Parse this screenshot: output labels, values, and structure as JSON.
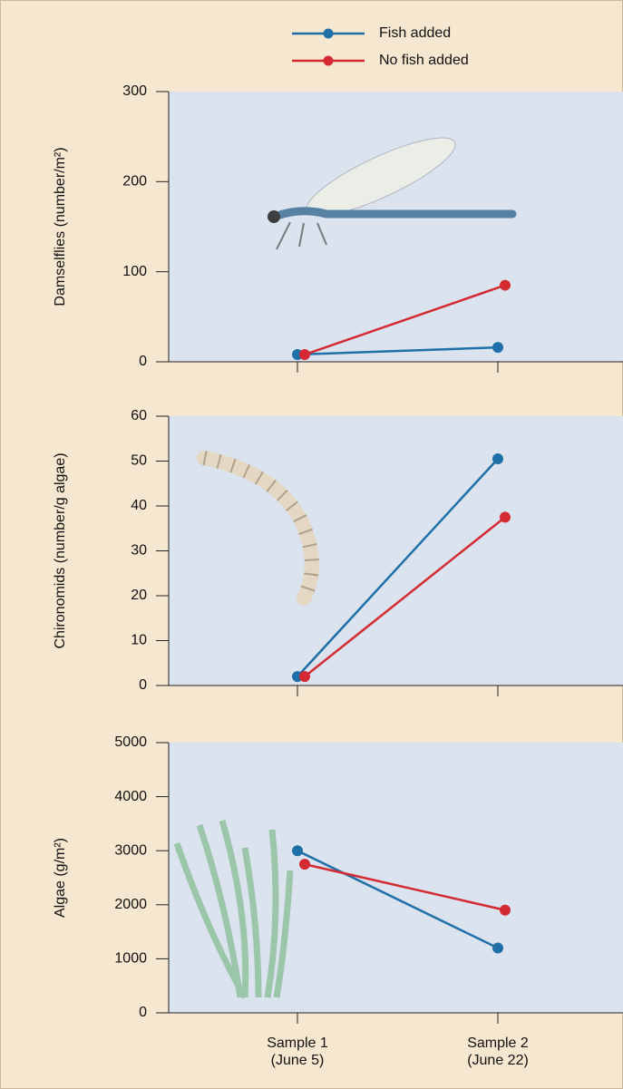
{
  "chart_data": [
    {
      "type": "line",
      "y_label": "Damselflies (number/m²)",
      "categories": [
        null,
        null
      ],
      "series": [
        {
          "name": "Fish added",
          "color": "#1f6fa8",
          "values": [
            8,
            16
          ]
        },
        {
          "name": "No fish added",
          "color": "#d42a32",
          "values": [
            8,
            85
          ]
        }
      ],
      "ylim": [
        0,
        300
      ],
      "yticks": [
        0,
        100,
        200,
        300
      ]
    },
    {
      "type": "line",
      "y_label": "Chironomids (number/g algae)",
      "categories": [
        null,
        null
      ],
      "series": [
        {
          "color": "#1f6fa8",
          "values": [
            2,
            50.5
          ]
        },
        {
          "color": "#d42a32",
          "values": [
            2,
            37.5
          ]
        }
      ],
      "ylim": [
        0,
        60
      ],
      "yticks": [
        0,
        10,
        20,
        30,
        40,
        50,
        60
      ]
    },
    {
      "type": "line",
      "y_label": "Algae (g/m²)",
      "categories": [
        "Sample 1\n(June 5)",
        "Sample 2\n(June 22)"
      ],
      "series": [
        {
          "color": "#1f6fa8",
          "values": [
            3000,
            1200
          ]
        },
        {
          "color": "#d42a32",
          "values": [
            2750,
            1900
          ]
        }
      ],
      "ylim": [
        0,
        5000
      ],
      "yticks": [
        0,
        1000,
        2000,
        3000,
        4000,
        5000
      ]
    }
  ]
}
